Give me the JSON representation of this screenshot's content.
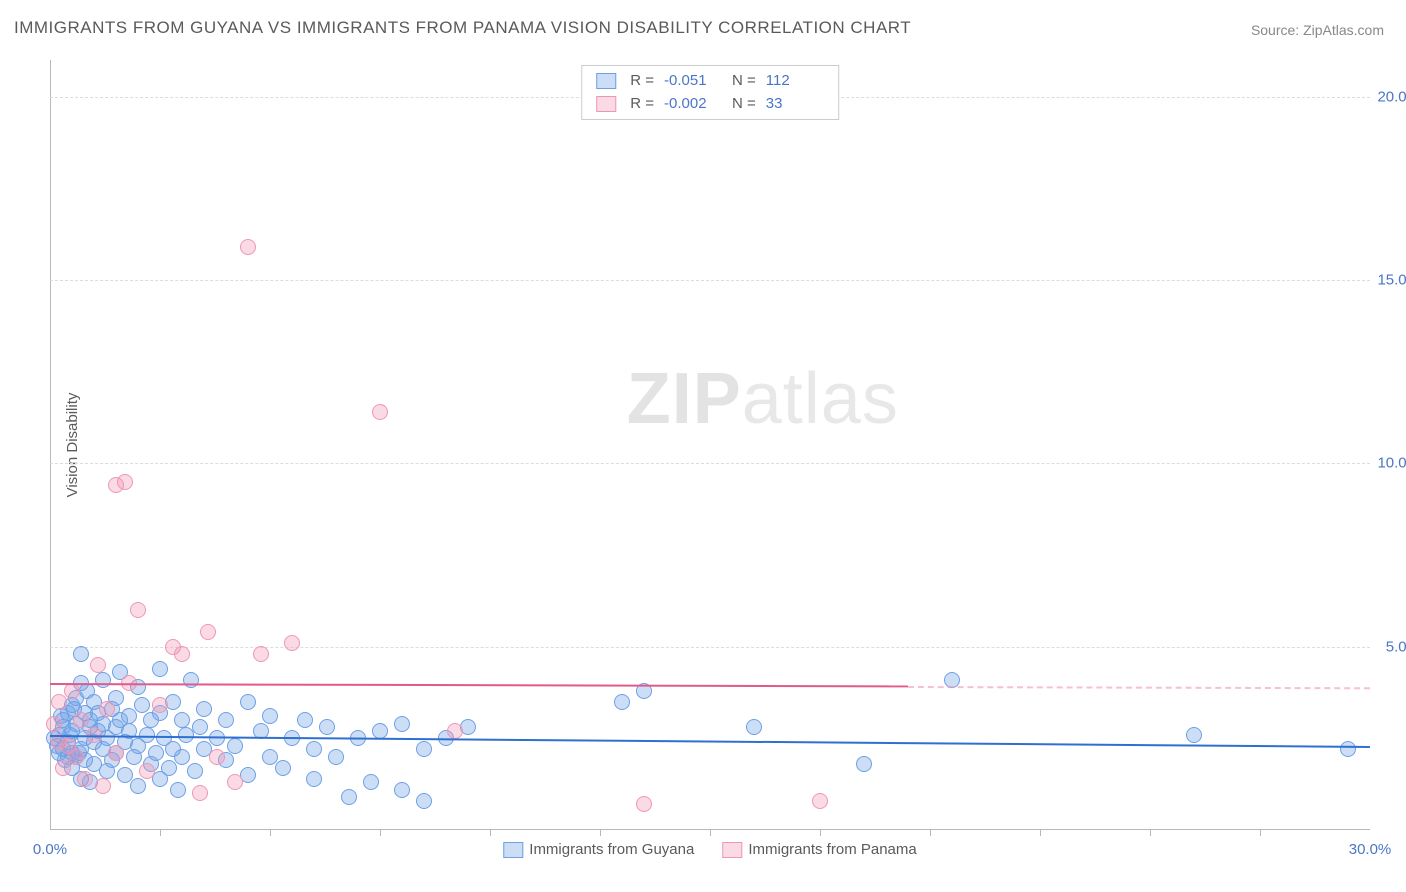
{
  "title": "IMMIGRANTS FROM GUYANA VS IMMIGRANTS FROM PANAMA VISION DISABILITY CORRELATION CHART",
  "source": "Source: ZipAtlas.com",
  "watermark_zip": "ZIP",
  "watermark_atlas": "atlas",
  "ylabel": "Vision Disability",
  "chart": {
    "type": "scatter",
    "background_color": "#ffffff",
    "grid_color": "#dcdcdc",
    "axis_color": "#b8b8b8",
    "xlim": [
      0,
      30
    ],
    "ylim": [
      0,
      21
    ],
    "xticks": [
      {
        "v": 0,
        "label": "0.0%"
      },
      {
        "v": 30,
        "label": "30.0%"
      }
    ],
    "xtick_marks": [
      2.5,
      5,
      7.5,
      10,
      12.5,
      15,
      17.5,
      20,
      22.5,
      25,
      27.5
    ],
    "yticks": [
      {
        "v": 5,
        "label": "5.0%"
      },
      {
        "v": 10,
        "label": "10.0%"
      },
      {
        "v": 15,
        "label": "15.0%"
      },
      {
        "v": 20,
        "label": "20.0%"
      }
    ],
    "series": [
      {
        "name": "Immigrants from Guyana",
        "fill": "rgba(110,160,230,0.35)",
        "stroke": "#6ea0e6",
        "line_color": "#2f6fd0",
        "dash_color": "rgba(110,160,230,0.5)",
        "reg": {
          "x1": 0,
          "y1": 2.6,
          "x2": 30,
          "y2": 2.3,
          "solid_end_x": 30
        },
        "points": [
          [
            0.1,
            2.5
          ],
          [
            0.2,
            2.6
          ],
          [
            0.2,
            2.1
          ],
          [
            0.3,
            3.0
          ],
          [
            0.3,
            2.2
          ],
          [
            0.3,
            2.8
          ],
          [
            0.4,
            2.0
          ],
          [
            0.4,
            3.2
          ],
          [
            0.4,
            2.4
          ],
          [
            0.5,
            2.1
          ],
          [
            0.5,
            2.7
          ],
          [
            0.5,
            3.4
          ],
          [
            0.5,
            1.7
          ],
          [
            0.6,
            2.9
          ],
          [
            0.6,
            2.0
          ],
          [
            0.6,
            3.6
          ],
          [
            0.7,
            2.2
          ],
          [
            0.7,
            4.0
          ],
          [
            0.7,
            4.8
          ],
          [
            0.7,
            1.4
          ],
          [
            0.8,
            2.5
          ],
          [
            0.8,
            3.2
          ],
          [
            0.8,
            1.9
          ],
          [
            0.9,
            2.8
          ],
          [
            0.9,
            3.0
          ],
          [
            0.9,
            1.3
          ],
          [
            1.0,
            2.4
          ],
          [
            1.0,
            3.5
          ],
          [
            1.0,
            1.8
          ],
          [
            1.1,
            2.7
          ],
          [
            1.1,
            3.2
          ],
          [
            1.2,
            2.2
          ],
          [
            1.2,
            2.9
          ],
          [
            1.2,
            4.1
          ],
          [
            1.3,
            1.6
          ],
          [
            1.3,
            2.5
          ],
          [
            1.4,
            3.3
          ],
          [
            1.4,
            1.9
          ],
          [
            1.5,
            2.8
          ],
          [
            1.5,
            3.6
          ],
          [
            1.5,
            2.1
          ],
          [
            1.6,
            3.0
          ],
          [
            1.6,
            4.3
          ],
          [
            1.7,
            2.4
          ],
          [
            1.7,
            1.5
          ],
          [
            1.8,
            3.1
          ],
          [
            1.8,
            2.7
          ],
          [
            1.9,
            2.0
          ],
          [
            2.0,
            3.9
          ],
          [
            2.0,
            2.3
          ],
          [
            2.0,
            1.2
          ],
          [
            2.1,
            3.4
          ],
          [
            2.2,
            2.6
          ],
          [
            2.3,
            1.8
          ],
          [
            2.3,
            3.0
          ],
          [
            2.4,
            2.1
          ],
          [
            2.5,
            3.2
          ],
          [
            2.5,
            4.4
          ],
          [
            2.5,
            1.4
          ],
          [
            2.6,
            2.5
          ],
          [
            2.7,
            1.7
          ],
          [
            2.8,
            3.5
          ],
          [
            2.8,
            2.2
          ],
          [
            2.9,
            1.1
          ],
          [
            3.0,
            3.0
          ],
          [
            3.0,
            2.0
          ],
          [
            3.1,
            2.6
          ],
          [
            3.2,
            4.1
          ],
          [
            3.3,
            1.6
          ],
          [
            3.4,
            2.8
          ],
          [
            3.5,
            2.2
          ],
          [
            3.5,
            3.3
          ],
          [
            3.8,
            2.5
          ],
          [
            4.0,
            1.9
          ],
          [
            4.0,
            3.0
          ],
          [
            4.2,
            2.3
          ],
          [
            4.5,
            3.5
          ],
          [
            4.5,
            1.5
          ],
          [
            4.8,
            2.7
          ],
          [
            5.0,
            2.0
          ],
          [
            5.0,
            3.1
          ],
          [
            5.3,
            1.7
          ],
          [
            5.5,
            2.5
          ],
          [
            5.8,
            3.0
          ],
          [
            6.0,
            2.2
          ],
          [
            6.0,
            1.4
          ],
          [
            6.3,
            2.8
          ],
          [
            6.5,
            2.0
          ],
          [
            6.8,
            0.9
          ],
          [
            7.0,
            2.5
          ],
          [
            7.3,
            1.3
          ],
          [
            7.5,
            2.7
          ],
          [
            8.0,
            1.1
          ],
          [
            8.0,
            2.9
          ],
          [
            8.5,
            2.2
          ],
          [
            8.5,
            0.8
          ],
          [
            9.0,
            2.5
          ],
          [
            9.5,
            2.8
          ],
          [
            13.0,
            3.5
          ],
          [
            13.5,
            3.8
          ],
          [
            16.0,
            2.8
          ],
          [
            18.5,
            1.8
          ],
          [
            20.5,
            4.1
          ],
          [
            26.0,
            2.6
          ],
          [
            29.5,
            2.2
          ],
          [
            0.15,
            2.3
          ],
          [
            0.25,
            3.1
          ],
          [
            0.35,
            1.9
          ],
          [
            0.45,
            2.6
          ],
          [
            0.55,
            3.3
          ],
          [
            0.65,
            2.1
          ],
          [
            0.85,
            3.8
          ]
        ]
      },
      {
        "name": "Immigrants from Panama",
        "fill": "rgba(240,150,180,0.35)",
        "stroke": "#f096b4",
        "line_color": "#e05a8c",
        "dash_color": "rgba(240,150,180,0.6)",
        "reg": {
          "x1": 0,
          "y1": 4.0,
          "x2": 30,
          "y2": 3.9,
          "solid_end_x": 19.5
        },
        "points": [
          [
            0.1,
            2.9
          ],
          [
            0.2,
            2.4
          ],
          [
            0.2,
            3.5
          ],
          [
            0.3,
            1.7
          ],
          [
            0.4,
            2.3
          ],
          [
            0.5,
            3.8
          ],
          [
            0.6,
            2.0
          ],
          [
            0.7,
            3.0
          ],
          [
            0.8,
            1.4
          ],
          [
            1.0,
            2.6
          ],
          [
            1.1,
            4.5
          ],
          [
            1.2,
            1.2
          ],
          [
            1.3,
            3.3
          ],
          [
            1.5,
            2.1
          ],
          [
            1.5,
            9.4
          ],
          [
            1.7,
            9.5
          ],
          [
            1.8,
            4.0
          ],
          [
            2.0,
            6.0
          ],
          [
            2.2,
            1.6
          ],
          [
            2.5,
            3.4
          ],
          [
            2.8,
            5.0
          ],
          [
            3.0,
            4.8
          ],
          [
            3.4,
            1.0
          ],
          [
            3.6,
            5.4
          ],
          [
            3.8,
            2.0
          ],
          [
            4.2,
            1.3
          ],
          [
            4.5,
            15.9
          ],
          [
            4.8,
            4.8
          ],
          [
            5.5,
            5.1
          ],
          [
            7.5,
            11.4
          ],
          [
            9.2,
            2.7
          ],
          [
            13.5,
            0.7
          ],
          [
            17.5,
            0.8
          ]
        ]
      }
    ]
  },
  "stats_legend": {
    "rows": [
      {
        "swatch_fill": "rgba(110,160,230,0.35)",
        "swatch_stroke": "#6ea0e6",
        "r_label": "R =",
        "r": "-0.051",
        "n_label": "N =",
        "n": "112"
      },
      {
        "swatch_fill": "rgba(240,150,180,0.35)",
        "swatch_stroke": "#f096b4",
        "r_label": "R =",
        "r": "-0.002",
        "n_label": "N =",
        "n": "33"
      }
    ]
  },
  "bottom_legend": [
    {
      "swatch_fill": "rgba(110,160,230,0.35)",
      "swatch_stroke": "#6ea0e6",
      "label": "Immigrants from Guyana"
    },
    {
      "swatch_fill": "rgba(240,150,180,0.35)",
      "swatch_stroke": "#f096b4",
      "label": "Immigrants from Panama"
    }
  ]
}
